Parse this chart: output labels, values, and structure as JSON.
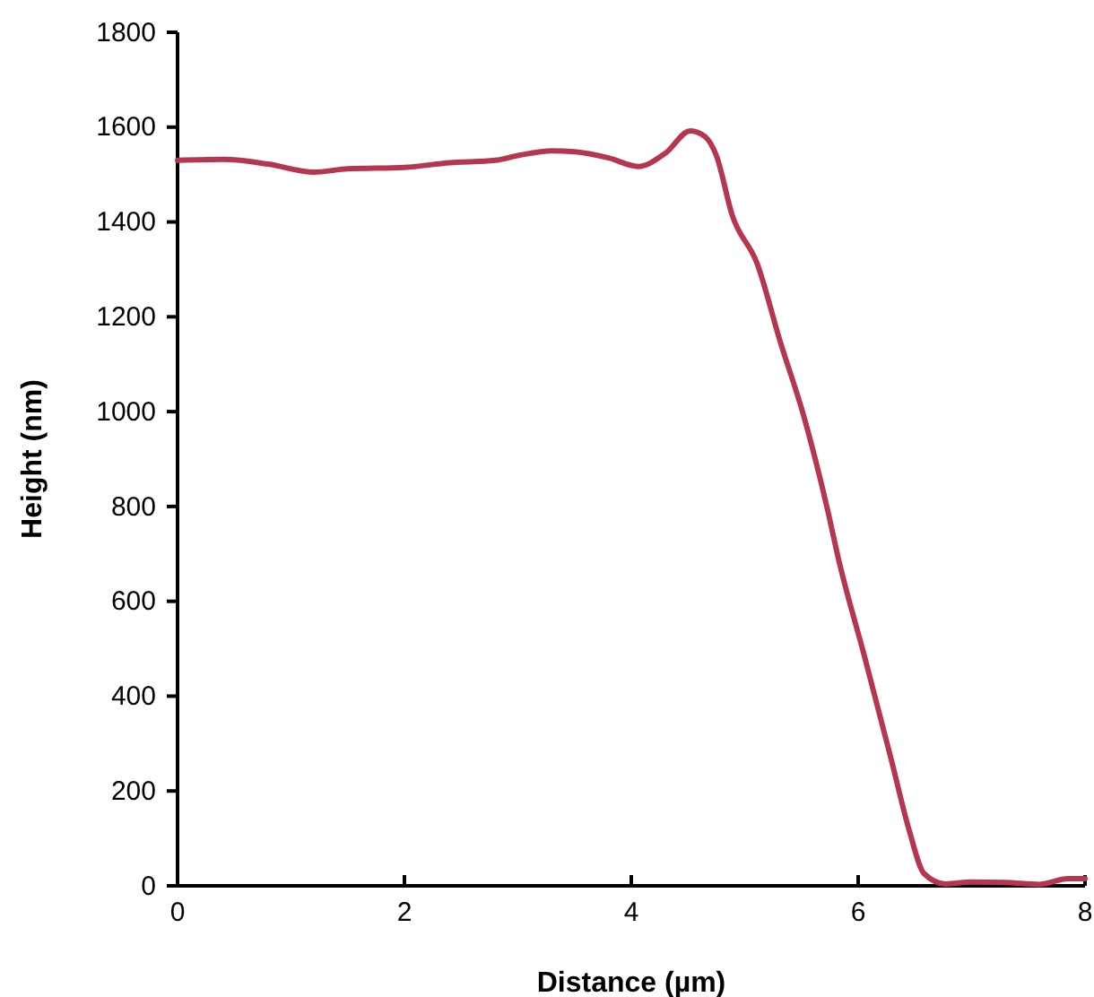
{
  "chart_data": {
    "type": "line",
    "xlabel": "Distance (µm)",
    "ylabel": "Height (nm)",
    "xlim": [
      0,
      8
    ],
    "xticks": [
      0,
      2,
      4,
      6,
      8
    ],
    "ylim": [
      0,
      1800
    ],
    "yticks": [
      0,
      200,
      400,
      600,
      800,
      1000,
      1200,
      1400,
      1600,
      1800
    ],
    "grid": false,
    "marker": "none",
    "line_style": "solid",
    "series": [
      {
        "color": "#b5364f",
        "x": [
          0,
          0.4,
          0.8,
          1.2,
          1.5,
          2,
          2.4,
          2.8,
          3.0,
          3.3,
          3.5,
          3.8,
          4.06,
          4.3,
          4.52,
          4.65,
          4.75,
          4.89,
          5.11,
          5.31,
          5.52,
          5.74,
          5.82,
          6.06,
          6.29,
          6.45,
          6.58,
          6.77,
          7.0,
          7.3,
          7.6,
          7.85,
          8
        ],
        "values": [
          1530,
          1532,
          1522,
          1505,
          1512,
          1515,
          1525,
          1530,
          1540,
          1550,
          1548,
          1535,
          1517,
          1545,
          1592,
          1580,
          1540,
          1414,
          1312,
          1150,
          991,
          783,
          696,
          480,
          268,
          117,
          26,
          4,
          8,
          7,
          3,
          15,
          15
        ]
      }
    ]
  }
}
